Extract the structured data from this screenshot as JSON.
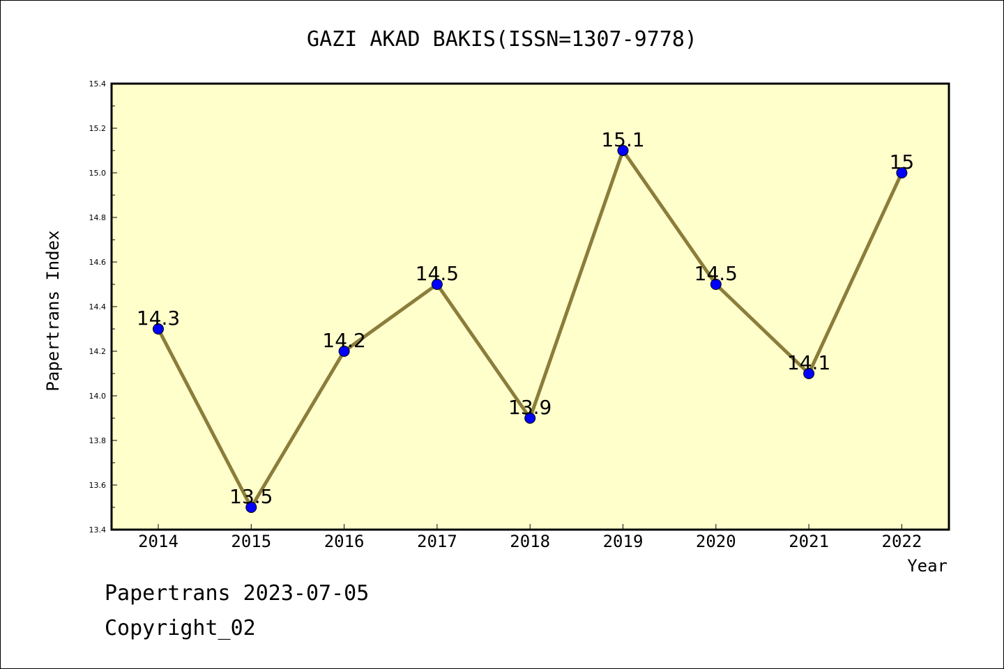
{
  "chart_data": {
    "type": "line",
    "title": "GAZI AKAD BAKIS(ISSN=1307-9778)",
    "xlabel": "Year",
    "ylabel": "Papertrans Index",
    "x": [
      "2014",
      "2015",
      "2016",
      "2017",
      "2018",
      "2019",
      "2020",
      "2021",
      "2022"
    ],
    "values": [
      14.3,
      13.5,
      14.2,
      14.5,
      13.9,
      15.1,
      14.5,
      14.1,
      15.0
    ],
    "data_labels": [
      "14.3",
      "13.5",
      "14.2",
      "14.5",
      "13.9",
      "15.1",
      "14.5",
      "14.1",
      "15"
    ],
    "ylim": [
      13.4,
      15.4
    ],
    "yticks": [
      "13.4",
      "13.6",
      "13.8",
      "14.0",
      "14.2",
      "14.4",
      "14.6",
      "14.8",
      "15.0",
      "15.2",
      "15.4"
    ],
    "grid": false,
    "colors": {
      "plot_background": "#ffffcc",
      "line": "#8b7d3a",
      "marker": "#0000ff"
    }
  },
  "footer": {
    "line1": "Papertrans 2023-07-05",
    "line2": "Copyright_02"
  }
}
